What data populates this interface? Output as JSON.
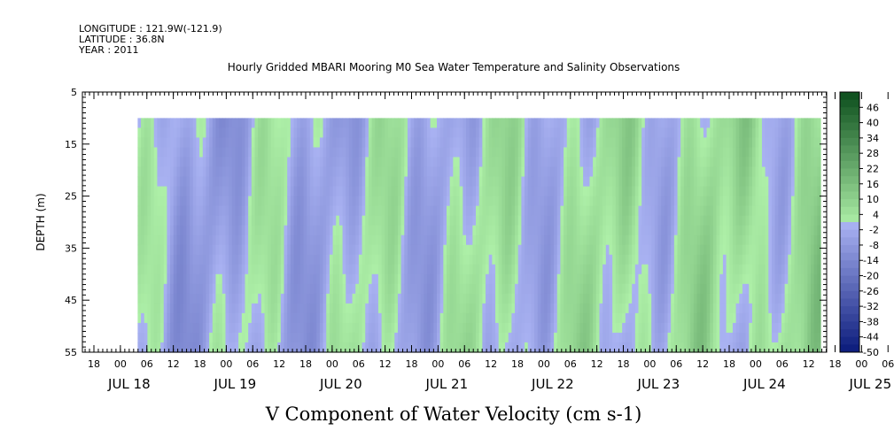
{
  "header": {
    "longitude": "LONGITUDE : 121.9W(-121.9)",
    "latitude": "LATITUDE : 36.8N",
    "year": "YEAR : 2011"
  },
  "chart_data": {
    "type": "heatmap",
    "title": "Hourly Gridded MBARI Mooring M0 Sea Water Temperature and Salinity Observations",
    "xlabel": "V Component of Water Velocity (cm s-1)",
    "ylabel": "DEPTH (m)",
    "ylim": [
      5,
      55
    ],
    "y_inverted": true,
    "y_ticks": [
      "5",
      "15",
      "25",
      "35",
      "45",
      "55"
    ],
    "hour_ticks": [
      "18",
      "00",
      "06",
      "12",
      "18",
      "00",
      "06",
      "12",
      "18",
      "00",
      "06",
      "12",
      "18",
      "00",
      "06",
      "12",
      "18",
      "00",
      "06",
      "12",
      "18",
      "00",
      "06",
      "12",
      "18",
      "00",
      "06",
      "12",
      "18",
      "00",
      "06",
      "12"
    ],
    "date_labels": [
      "JUL 18",
      "JUL 19",
      "JUL 20",
      "JUL 21",
      "JUL 22",
      "JUL 23",
      "JUL 24",
      "JUL 25"
    ],
    "data_depth_range": [
      10,
      55
    ],
    "colorbar": {
      "labels": [
        "46",
        "40",
        "34",
        "28",
        "22",
        "16",
        "10",
        "4",
        "-2",
        "-8",
        "-14",
        "-20",
        "-26",
        "-32",
        "-38",
        "-44",
        "-50"
      ],
      "range": [
        -50,
        52
      ]
    },
    "colors": {
      "negative_dark": "#0a1a7a",
      "negative_light": "#a9b2f2",
      "positive_light": "#aef0a8",
      "positive_dark": "#0b4d1c"
    }
  }
}
